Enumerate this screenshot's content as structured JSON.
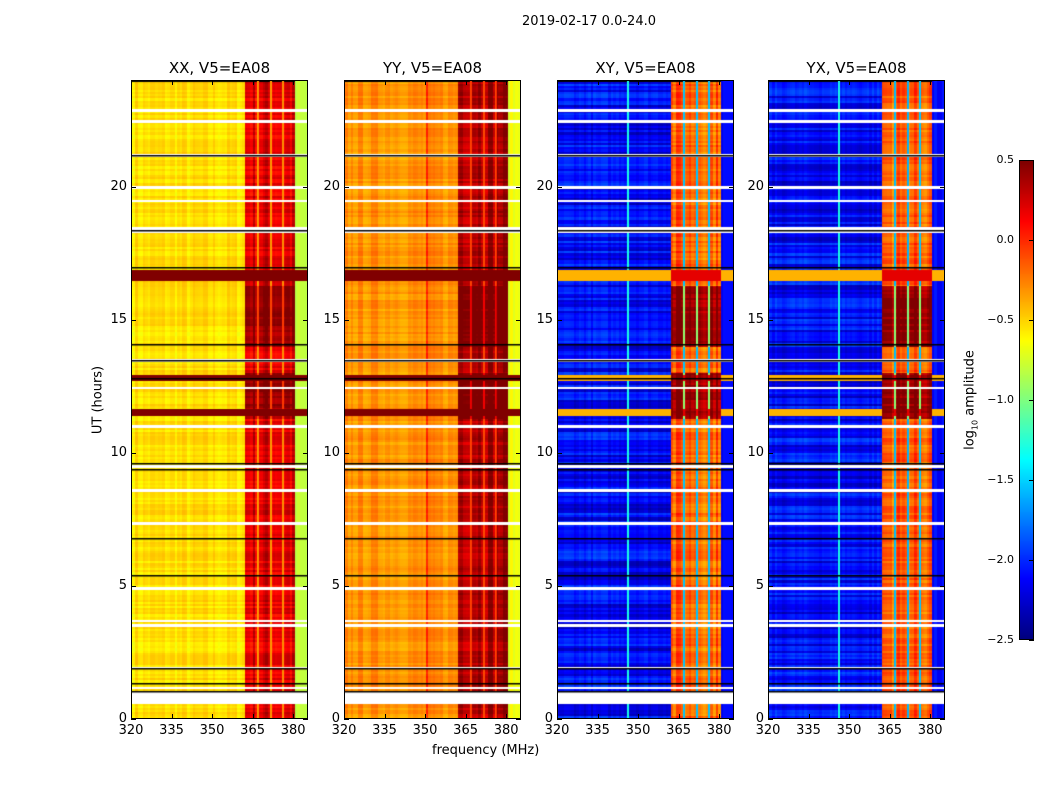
{
  "chart_data": {
    "type": "heatmap",
    "title": "2019-02-17 0.0-24.0",
    "xlabel": "frequency (MHz)",
    "ylabel": "UT (hours)",
    "xlim": [
      320,
      385.5
    ],
    "ylim": [
      0,
      24
    ],
    "xticks": [
      320,
      335,
      350,
      365,
      380
    ],
    "yticks": [
      0,
      5,
      10,
      15,
      20
    ],
    "colormap": "jet",
    "colorbar": {
      "label_prefix": "log",
      "label_sub": "10",
      "label_suffix": " amplitude",
      "range": [
        -2.5,
        0.5
      ],
      "ticks": [
        "0.5",
        "0.0",
        "−0.5",
        "−1.0",
        "−1.5",
        "−2.0",
        "−2.5"
      ],
      "tick_values": [
        0.5,
        0.0,
        -0.5,
        -1.0,
        -1.5,
        -2.0,
        -2.5
      ]
    },
    "panels": [
      {
        "title": "XX, V5=EA08",
        "base": -0.62,
        "edge": -0.9,
        "band": 0.05,
        "band_gap": -0.35,
        "rfi_rows": 0.5
      },
      {
        "title": "YY, V5=EA08",
        "base": -0.38,
        "edge": -0.75,
        "band": 0.25,
        "band_gap": -0.1,
        "rfi_rows": 0.5
      },
      {
        "title": "XY, V5=EA08",
        "base": -2.2,
        "edge": -2.2,
        "band": -0.3,
        "band_gap": -1.6,
        "rfi_rows": 0.2
      },
      {
        "title": "YX, V5=EA08",
        "base": -2.2,
        "edge": -2.2,
        "band": -0.3,
        "band_gap": -1.6,
        "rfi_rows": 0.2
      }
    ],
    "band_mhz": [
      362,
      381
    ],
    "band_gaps_mhz": [
      [
        366.5,
        367.3
      ],
      [
        371.3,
        372.2
      ],
      [
        375.8,
        376.6
      ]
    ],
    "flagged_hours": [
      [
        0.55,
        1.0
      ],
      [
        1.12,
        1.2
      ],
      [
        1.85,
        1.95
      ],
      [
        3.45,
        3.55
      ],
      [
        3.65,
        3.72
      ],
      [
        4.85,
        4.97
      ],
      [
        7.3,
        7.4
      ],
      [
        8.55,
        8.65
      ],
      [
        9.45,
        9.55
      ],
      [
        10.95,
        11.05
      ],
      [
        12.4,
        12.5
      ],
      [
        13.45,
        13.55
      ],
      [
        18.3,
        18.5
      ],
      [
        19.45,
        19.55
      ],
      [
        19.95,
        20.05
      ],
      [
        21.15,
        21.25
      ],
      [
        22.45,
        22.55
      ],
      [
        22.85,
        22.95
      ]
    ],
    "boundary_hours": [
      1.03,
      1.3,
      1.9,
      5.4,
      6.8,
      9.4,
      9.6,
      12.8,
      13.5,
      14.1,
      17.0,
      18.4,
      21.2
    ],
    "rfi_row_hours": [
      [
        11.4,
        11.65
      ],
      [
        12.7,
        12.95
      ],
      [
        16.5,
        16.9
      ]
    ]
  }
}
